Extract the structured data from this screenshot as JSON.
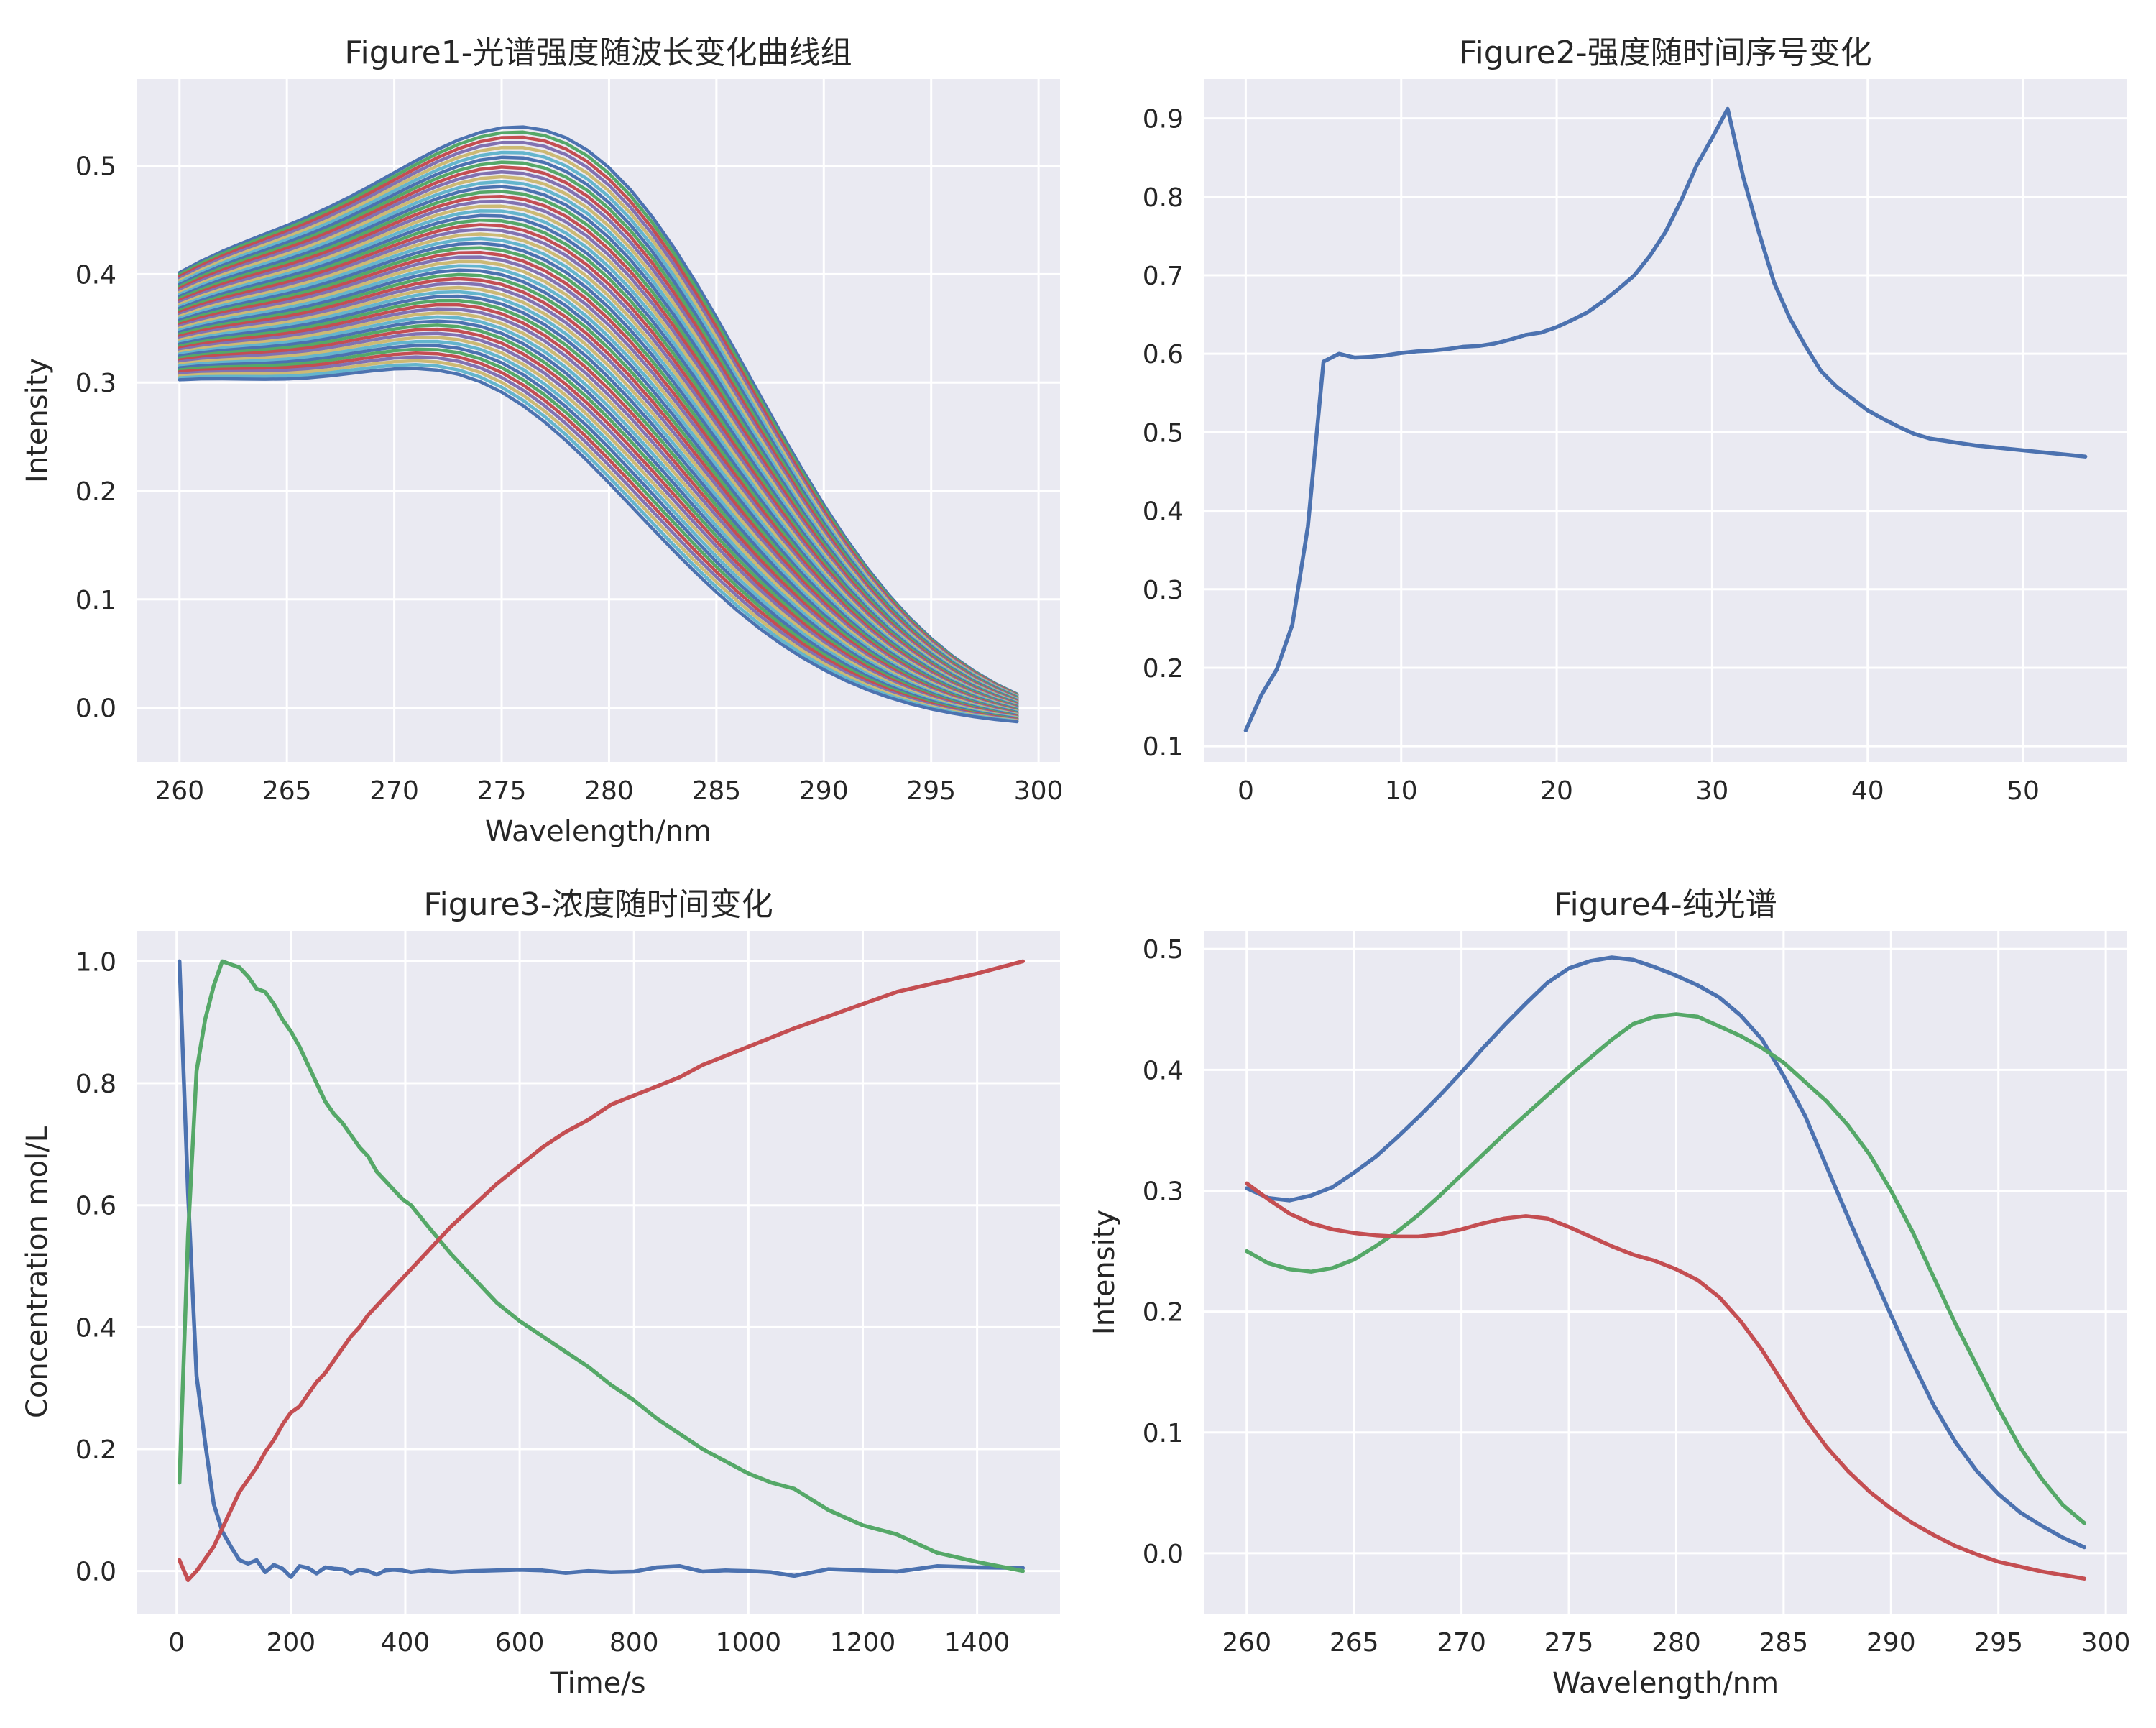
{
  "chart_data": [
    {
      "type": "line",
      "title": "Figure1-光谱强度随波长变化曲线组",
      "xlabel": "Wavelength/nm",
      "ylabel": "Intensity",
      "xlim": [
        258,
        301
      ],
      "ylim": [
        -0.05,
        0.58
      ],
      "xticks": [
        "260",
        "265",
        "270",
        "275",
        "280",
        "285",
        "290",
        "295",
        "300"
      ],
      "yticks": [
        "0.0",
        "0.1",
        "0.2",
        "0.3",
        "0.4",
        "0.5"
      ],
      "x_range": [
        260,
        299
      ],
      "series_count": 55,
      "series_profile": "each of the 55 curves runs from 260 to 299 nm; the first curve (blue) starts at 0.34, peaks at about 0.56 near 278 nm and ends at 0.02; the last curve (light blue) starts at 0.30, has a shallow maximum of 0.28 near 273 nm and ends at -0.02; intermediate curves fill the band between them",
      "colors": [
        "#4c72b0",
        "#55a868",
        "#c44e52",
        "#8172b2",
        "#ccb974",
        "#64b5cd"
      ],
      "grid": true
    },
    {
      "type": "line",
      "title": "Figure2-强度随时间序号变化",
      "xlabel": "",
      "ylabel": "",
      "xlim": [
        -2.7,
        56.7
      ],
      "ylim": [
        0.08,
        0.95
      ],
      "xticks": [
        "0",
        "10",
        "20",
        "30",
        "40",
        "50"
      ],
      "yticks": [
        "0.1",
        "0.2",
        "0.3",
        "0.4",
        "0.5",
        "0.6",
        "0.7",
        "0.8",
        "0.9"
      ],
      "x": [
        0,
        1,
        2,
        3,
        4,
        5,
        6,
        7,
        8,
        9,
        10,
        11,
        12,
        13,
        14,
        15,
        16,
        17,
        18,
        19,
        20,
        21,
        22,
        23,
        24,
        25,
        26,
        27,
        28,
        29,
        30,
        31,
        32,
        33,
        34,
        35,
        36,
        37,
        38,
        39,
        40,
        41,
        42,
        43,
        44,
        45,
        46,
        47,
        48,
        49,
        50,
        51,
        52,
        53,
        54
      ],
      "series": [
        {
          "values": [
            0.12,
            0.165,
            0.198,
            0.255,
            0.38,
            0.59,
            0.6,
            0.595,
            0.596,
            0.598,
            0.601,
            0.603,
            0.604,
            0.606,
            0.609,
            0.61,
            0.613,
            0.618,
            0.624,
            0.627,
            0.634,
            0.643,
            0.653,
            0.667,
            0.683,
            0.7,
            0.725,
            0.755,
            0.795,
            0.84,
            0.875,
            0.912,
            0.825,
            0.755,
            0.69,
            0.645,
            0.61,
            0.578,
            0.558,
            0.543,
            0.528,
            0.517,
            0.507,
            0.498,
            0.492,
            0.489,
            0.486,
            0.483,
            0.481,
            0.479,
            0.477,
            0.475,
            0.473,
            0.471,
            0.469
          ],
          "color": "#4c72b0"
        }
      ],
      "grid": true
    },
    {
      "type": "line",
      "title": "Figure3-浓度随时间变化",
      "xlabel": "Time/s",
      "ylabel": "Concentration mol/L",
      "xlim": [
        -70,
        1545
      ],
      "ylim": [
        -0.07,
        1.05
      ],
      "xticks": [
        "0",
        "200",
        "400",
        "600",
        "800",
        "1000",
        "1200",
        "1400"
      ],
      "yticks": [
        "0.0",
        "0.2",
        "0.4",
        "0.6",
        "0.8",
        "1.0"
      ],
      "series": [
        {
          "color": "#4c72b0",
          "x": [
            5,
            20,
            35,
            50,
            65,
            80,
            95,
            110,
            125,
            140,
            155,
            170,
            185,
            200,
            215,
            230,
            245,
            260,
            275,
            290,
            305,
            320,
            335,
            350,
            365,
            380,
            395,
            410,
            440,
            480,
            520,
            560,
            600,
            640,
            680,
            720,
            760,
            800,
            840,
            880,
            920,
            960,
            1000,
            1040,
            1080,
            1140,
            1200,
            1260,
            1330,
            1400,
            1480
          ],
          "values": [
            1.0,
            0.62,
            0.32,
            0.21,
            0.11,
            0.065,
            0.04,
            0.018,
            0.012,
            0.018,
            -0.002,
            0.01,
            0.004,
            -0.01,
            0.008,
            0.005,
            -0.004,
            0.006,
            0.004,
            0.003,
            -0.004,
            0.002,
            0.0,
            -0.006,
            0.001,
            0.002,
            0.001,
            -0.002,
            0.001,
            -0.002,
            0.0,
            0.001,
            0.002,
            0.001,
            -0.003,
            0.0,
            -0.002,
            -0.001,
            0.006,
            0.008,
            -0.001,
            0.001,
            0.0,
            -0.002,
            -0.008,
            0.003,
            0.001,
            -0.001,
            0.008,
            0.006,
            0.005
          ]
        },
        {
          "color": "#55a868",
          "x": [
            5,
            20,
            35,
            50,
            65,
            80,
            95,
            110,
            125,
            140,
            155,
            170,
            185,
            200,
            215,
            230,
            245,
            260,
            275,
            290,
            305,
            320,
            335,
            350,
            365,
            380,
            395,
            410,
            440,
            480,
            520,
            560,
            600,
            640,
            680,
            720,
            760,
            800,
            840,
            880,
            920,
            960,
            1000,
            1040,
            1080,
            1140,
            1200,
            1260,
            1330,
            1400,
            1480
          ],
          "values": [
            0.145,
            0.55,
            0.82,
            0.905,
            0.96,
            1.0,
            0.995,
            0.99,
            0.975,
            0.955,
            0.95,
            0.93,
            0.905,
            0.885,
            0.86,
            0.83,
            0.8,
            0.77,
            0.75,
            0.735,
            0.715,
            0.695,
            0.68,
            0.655,
            0.64,
            0.625,
            0.61,
            0.6,
            0.565,
            0.52,
            0.48,
            0.44,
            0.41,
            0.385,
            0.36,
            0.335,
            0.305,
            0.28,
            0.25,
            0.225,
            0.2,
            0.18,
            0.16,
            0.145,
            0.135,
            0.1,
            0.075,
            0.06,
            0.03,
            0.015,
            0.0
          ]
        },
        {
          "color": "#c44e52",
          "x": [
            5,
            20,
            35,
            50,
            65,
            80,
            95,
            110,
            125,
            140,
            155,
            170,
            185,
            200,
            215,
            230,
            245,
            260,
            275,
            290,
            305,
            320,
            335,
            350,
            365,
            380,
            395,
            410,
            440,
            480,
            520,
            560,
            600,
            640,
            680,
            720,
            760,
            800,
            840,
            880,
            920,
            960,
            1000,
            1040,
            1080,
            1140,
            1200,
            1260,
            1330,
            1400,
            1480
          ],
          "values": [
            0.018,
            -0.015,
            0.0,
            0.02,
            0.04,
            0.07,
            0.1,
            0.13,
            0.15,
            0.17,
            0.195,
            0.215,
            0.24,
            0.26,
            0.27,
            0.29,
            0.31,
            0.325,
            0.345,
            0.365,
            0.385,
            0.4,
            0.42,
            0.435,
            0.45,
            0.465,
            0.48,
            0.495,
            0.525,
            0.565,
            0.6,
            0.635,
            0.665,
            0.695,
            0.72,
            0.74,
            0.765,
            0.78,
            0.795,
            0.81,
            0.83,
            0.845,
            0.86,
            0.875,
            0.89,
            0.91,
            0.93,
            0.95,
            0.965,
            0.98,
            1.0
          ]
        }
      ],
      "grid": true
    },
    {
      "type": "line",
      "title": "Figure4-纯光谱",
      "xlabel": "Wavelength/nm",
      "ylabel": "Intensity",
      "xlim": [
        258,
        301
      ],
      "ylim": [
        -0.05,
        0.515
      ],
      "xticks": [
        "260",
        "265",
        "270",
        "275",
        "280",
        "285",
        "290",
        "295",
        "300"
      ],
      "yticks": [
        "0.0",
        "0.1",
        "0.2",
        "0.3",
        "0.4",
        "0.5"
      ],
      "x": [
        260,
        261,
        262,
        263,
        264,
        265,
        266,
        267,
        268,
        269,
        270,
        271,
        272,
        273,
        274,
        275,
        276,
        277,
        278,
        279,
        280,
        281,
        282,
        283,
        284,
        285,
        286,
        287,
        288,
        289,
        290,
        291,
        292,
        293,
        294,
        295,
        296,
        297,
        298,
        299
      ],
      "series": [
        {
          "color": "#4c72b0",
          "values": [
            0.302,
            0.294,
            0.292,
            0.296,
            0.303,
            0.315,
            0.328,
            0.344,
            0.361,
            0.379,
            0.398,
            0.418,
            0.437,
            0.455,
            0.472,
            0.484,
            0.49,
            0.493,
            0.491,
            0.485,
            0.478,
            0.47,
            0.46,
            0.445,
            0.425,
            0.395,
            0.362,
            0.32,
            0.278,
            0.237,
            0.197,
            0.158,
            0.122,
            0.092,
            0.068,
            0.049,
            0.034,
            0.023,
            0.013,
            0.005
          ]
        },
        {
          "color": "#55a868",
          "values": [
            0.25,
            0.24,
            0.235,
            0.233,
            0.236,
            0.243,
            0.254,
            0.266,
            0.28,
            0.296,
            0.313,
            0.33,
            0.347,
            0.363,
            0.379,
            0.395,
            0.41,
            0.425,
            0.438,
            0.444,
            0.446,
            0.444,
            0.436,
            0.428,
            0.418,
            0.406,
            0.39,
            0.374,
            0.354,
            0.33,
            0.3,
            0.266,
            0.228,
            0.19,
            0.155,
            0.12,
            0.088,
            0.062,
            0.04,
            0.025
          ]
        },
        {
          "color": "#c44e52",
          "values": [
            0.306,
            0.293,
            0.281,
            0.273,
            0.268,
            0.265,
            0.263,
            0.262,
            0.262,
            0.264,
            0.268,
            0.273,
            0.277,
            0.279,
            0.277,
            0.27,
            0.262,
            0.254,
            0.247,
            0.242,
            0.235,
            0.226,
            0.212,
            0.192,
            0.168,
            0.14,
            0.112,
            0.088,
            0.068,
            0.051,
            0.037,
            0.025,
            0.015,
            0.006,
            -0.001,
            -0.007,
            -0.011,
            -0.015,
            -0.018,
            -0.021
          ]
        }
      ],
      "grid": true
    }
  ]
}
